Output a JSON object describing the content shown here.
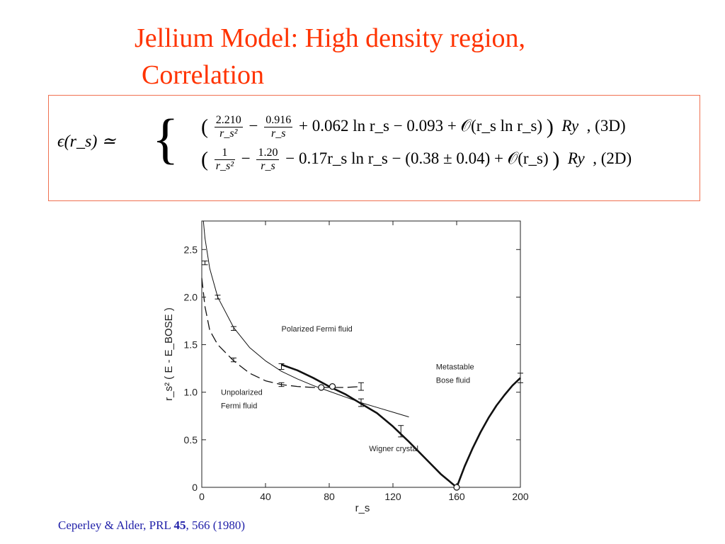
{
  "slide": {
    "title_line1": "Jellium Model: High density region,",
    "title_line2": "Correlation"
  },
  "formula": {
    "lhs": "ϵ(r_s) ≃",
    "row_3d": {
      "frac1_num": "2.210",
      "frac1_den": "r_s²",
      "frac2_num": "0.916",
      "frac2_den": "r_s",
      "rest": "+ 0.062 ln r_s − 0.093 + 𝒪(r_s ln r_s)",
      "unit": "Ry",
      "tag": ", (3D)"
    },
    "row_2d": {
      "frac1_num": "1",
      "frac1_den": "r_s²",
      "frac2_num": "1.20",
      "frac2_den": "r_s",
      "rest": "− 0.17r_s ln r_s − (0.38 ± 0.04) + 𝒪(r_s)",
      "unit": "Ry",
      "tag": ", (2D)"
    }
  },
  "caption": {
    "authors": "Ceperley & Alder, PRL ",
    "volume": "45",
    "pages": ", 566 (1980)"
  },
  "chart_data": {
    "type": "line",
    "xlabel": "r_s",
    "ylabel": "r_s² ( E - E_BOSE )",
    "xlim": [
      0,
      200
    ],
    "ylim": [
      0,
      2.8
    ],
    "xticks": [
      "0",
      "40",
      "80",
      "120",
      "160",
      "200"
    ],
    "yticks": [
      "0",
      "0.5",
      "1.0",
      "1.5",
      "2.0",
      "2.5"
    ],
    "series": [
      {
        "name": "Polarized Fermi fluid",
        "style": "thin-solid",
        "x": [
          1,
          2,
          5,
          10,
          20,
          30,
          40,
          50,
          60,
          70,
          80,
          90,
          100,
          110,
          120,
          130
        ],
        "y": [
          2.8,
          2.62,
          2.3,
          2.0,
          1.68,
          1.47,
          1.33,
          1.22,
          1.14,
          1.07,
          1.01,
          0.95,
          0.89,
          0.84,
          0.79,
          0.74
        ]
      },
      {
        "name": "Unpolarized Fermi fluid",
        "style": "dashed",
        "x": [
          0,
          2,
          5,
          10,
          20,
          30,
          40,
          50,
          60,
          70,
          80,
          90,
          100
        ],
        "y": [
          2.2,
          1.9,
          1.65,
          1.5,
          1.33,
          1.2,
          1.12,
          1.08,
          1.06,
          1.05,
          1.05,
          1.05,
          1.06
        ]
      },
      {
        "name": "Wigner crystal",
        "style": "thick-solid",
        "x": [
          50,
          60,
          70,
          80,
          90,
          100,
          110,
          120,
          130,
          140,
          150,
          160
        ],
        "y": [
          1.29,
          1.23,
          1.15,
          1.06,
          0.98,
          0.88,
          0.78,
          0.64,
          0.48,
          0.31,
          0.14,
          0.0
        ]
      },
      {
        "name": "Metastable Bose fluid",
        "style": "thick-solid",
        "x": [
          160,
          165,
          170,
          175,
          180,
          185,
          190,
          195,
          200
        ],
        "y": [
          0.0,
          0.22,
          0.41,
          0.58,
          0.73,
          0.86,
          0.97,
          1.07,
          1.15
        ]
      }
    ],
    "error_bars": [
      {
        "x": 2,
        "y": 2.36,
        "e": 0.02
      },
      {
        "x": 10,
        "y": 2.0,
        "e": 0.02
      },
      {
        "x": 20,
        "y": 1.67,
        "e": 0.02
      },
      {
        "x": 20,
        "y": 1.34,
        "e": 0.02
      },
      {
        "x": 50,
        "y": 1.27,
        "e": 0.03
      },
      {
        "x": 50,
        "y": 1.08,
        "e": 0.02
      },
      {
        "x": 100,
        "y": 1.06,
        "e": 0.04
      },
      {
        "x": 100,
        "y": 0.89,
        "e": 0.04
      },
      {
        "x": 125,
        "y": 0.59,
        "e": 0.06
      },
      {
        "x": 200,
        "y": 1.15,
        "e": 0.05
      }
    ],
    "open_points": [
      {
        "x": 75,
        "y": 1.05
      },
      {
        "x": 82,
        "y": 1.06
      },
      {
        "x": 160,
        "y": 0.0
      }
    ],
    "annotations": [
      {
        "text": "Polarized Fermi fluid",
        "ax": 50,
        "ay": 1.64
      },
      {
        "text": "Unpolarized",
        "ax": 12,
        "ay": 0.97
      },
      {
        "text": "Fermi fluid",
        "ax": 12,
        "ay": 0.83
      },
      {
        "text": "Wigner crystal",
        "ax": 105,
        "ay": 0.38
      },
      {
        "text": "Metastable",
        "ax": 147,
        "ay": 1.24
      },
      {
        "text": "Bose fluid",
        "ax": 147,
        "ay": 1.1
      }
    ],
    "grid": false
  }
}
